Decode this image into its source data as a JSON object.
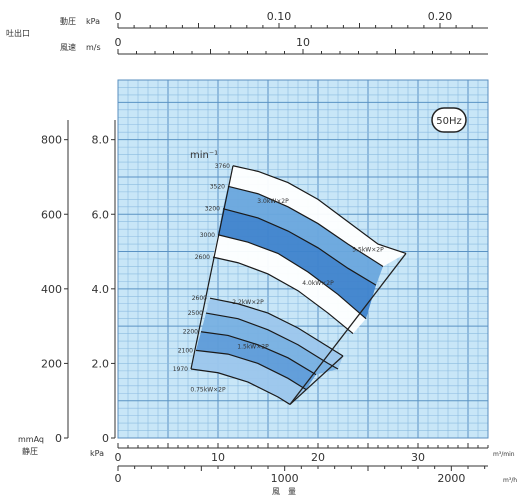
{
  "chart_data": {
    "type": "area",
    "badge": "50Hz",
    "speed_unit": "min⁻¹",
    "outlet_label": "吐出口",
    "top_axes": [
      {
        "name": "動圧",
        "unit": "kPa",
        "ticks": [
          {
            "value": 0,
            "label": "0"
          },
          {
            "value": 0.1,
            "label": "0.10"
          },
          {
            "value": 0.2,
            "label": "0.20"
          }
        ]
      },
      {
        "name": "風速",
        "unit": "m/s",
        "ticks": [
          {
            "value": 0,
            "label": "0"
          },
          {
            "value": 10,
            "label": "10"
          }
        ]
      }
    ],
    "y_left_mmaq": {
      "unit": "mmAq",
      "ticks": [
        0,
        200,
        400,
        600,
        800
      ],
      "ylim": [
        0,
        960
      ]
    },
    "y_left_kpa": {
      "unit": "kPa",
      "ticks": [
        "0",
        "2.0",
        "4.0",
        "6.0",
        "8.0"
      ],
      "ylim": [
        0,
        9.6
      ]
    },
    "y_label": "静圧",
    "x_m3min": {
      "unit": "m³/min",
      "ticks": [
        0,
        10,
        20,
        30
      ],
      "xlim": [
        0,
        37
      ]
    },
    "x_m3h": {
      "unit": "m³/h",
      "ticks": [
        "0",
        "1000",
        "2000"
      ]
    },
    "x_label": "風　量",
    "speed_curves": [
      {
        "rpm": "3760",
        "points": [
          [
            11.5,
            7.3
          ],
          [
            14,
            7.15
          ],
          [
            17,
            6.85
          ],
          [
            20,
            6.4
          ],
          [
            23,
            5.8
          ],
          [
            26,
            5.2
          ],
          [
            28.8,
            4.95
          ]
        ]
      },
      {
        "rpm": "3520",
        "points": [
          [
            11,
            6.75
          ],
          [
            14,
            6.55
          ],
          [
            17,
            6.2
          ],
          [
            20,
            5.75
          ],
          [
            23,
            5.2
          ],
          [
            26.5,
            4.6
          ]
        ]
      },
      {
        "rpm": "3200",
        "points": [
          [
            10.5,
            6.15
          ],
          [
            14,
            5.9
          ],
          [
            17,
            5.55
          ],
          [
            20,
            5.1
          ],
          [
            23,
            4.55
          ],
          [
            25.8,
            4.1
          ]
        ]
      },
      {
        "rpm": "3000",
        "points": [
          [
            10,
            5.45
          ],
          [
            13,
            5.25
          ],
          [
            16,
            4.95
          ],
          [
            19,
            4.45
          ],
          [
            22,
            3.85
          ],
          [
            24.8,
            3.2
          ]
        ]
      },
      {
        "rpm": "2600",
        "points": [
          [
            9.5,
            4.85
          ],
          [
            12,
            4.7
          ],
          [
            15,
            4.4
          ],
          [
            18,
            3.95
          ],
          [
            21,
            3.35
          ],
          [
            23.5,
            2.8
          ]
        ]
      },
      {
        "rpm": "2600",
        "points": [
          [
            9.2,
            3.75
          ],
          [
            12,
            3.6
          ],
          [
            15,
            3.35
          ],
          [
            18,
            2.95
          ],
          [
            21,
            2.45
          ],
          [
            22.5,
            2.2
          ]
        ]
      },
      {
        "rpm": "2500",
        "points": [
          [
            8.8,
            3.35
          ],
          [
            12,
            3.2
          ],
          [
            15,
            2.9
          ],
          [
            18,
            2.5
          ],
          [
            21,
            2.0
          ],
          [
            22,
            1.85
          ]
        ]
      },
      {
        "rpm": "2200",
        "points": [
          [
            8.3,
            2.85
          ],
          [
            11,
            2.75
          ],
          [
            14,
            2.5
          ],
          [
            17,
            2.15
          ],
          [
            19.8,
            1.7
          ]
        ]
      },
      {
        "rpm": "2100",
        "points": [
          [
            7.8,
            2.35
          ],
          [
            11,
            2.25
          ],
          [
            14,
            2.0
          ],
          [
            17,
            1.6
          ],
          [
            18.8,
            1.3
          ]
        ]
      },
      {
        "rpm": "1970",
        "points": [
          [
            7.3,
            1.85
          ],
          [
            10,
            1.75
          ],
          [
            13,
            1.5
          ],
          [
            16,
            1.1
          ],
          [
            17.2,
            0.9
          ]
        ]
      }
    ],
    "motor_labels": [
      {
        "label": "3.0kW×2P",
        "x": 15.5,
        "y": 6.3
      },
      {
        "label": "5.5kW×2P",
        "x": 25.0,
        "y": 5.0
      },
      {
        "label": "4.0kW×2P",
        "x": 20.0,
        "y": 4.1
      },
      {
        "label": "2.2kW×2P",
        "x": 13.0,
        "y": 3.6
      },
      {
        "label": "1.5kW×2P",
        "x": 13.5,
        "y": 2.4
      },
      {
        "label": "0.75kW×2P",
        "x": 9.0,
        "y": 1.25
      }
    ]
  }
}
